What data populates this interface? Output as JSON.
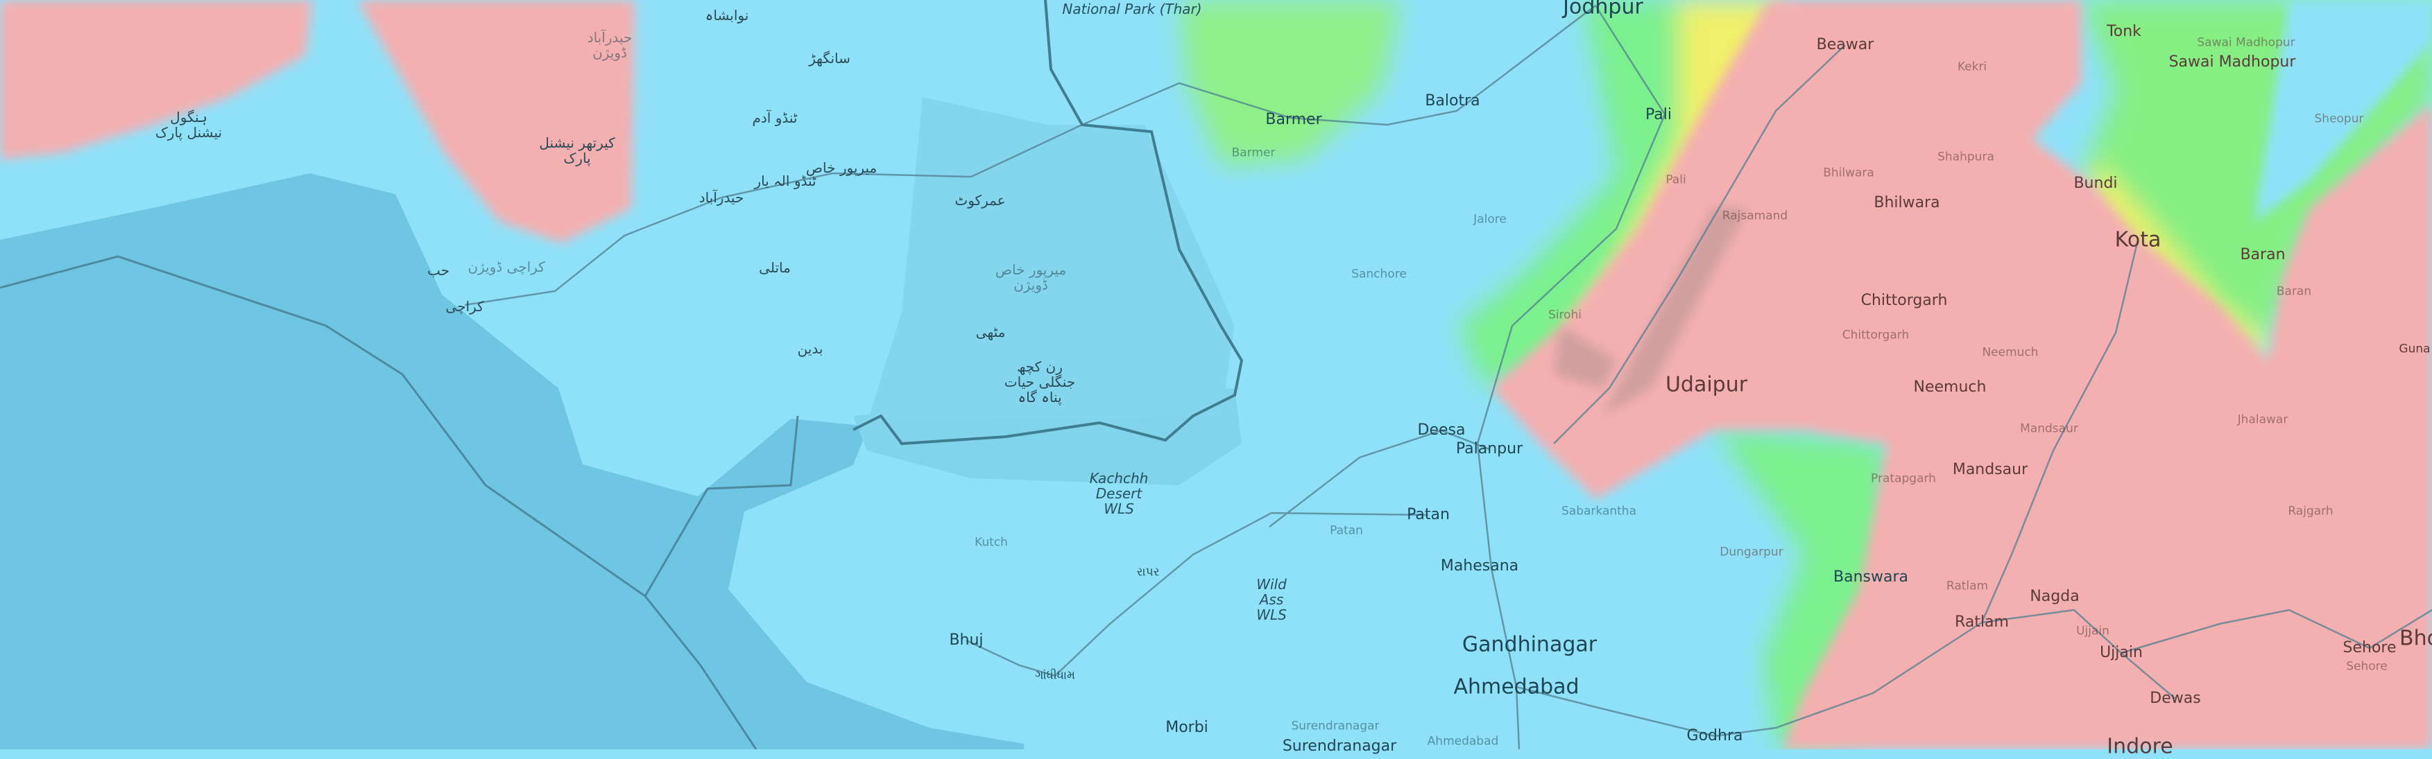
{
  "map": {
    "type": "topographic elevation map",
    "colors": {
      "lowland": "#8fe1f9",
      "sea": "#6fc6e2",
      "mid": "#7df08a",
      "upper": "#f2f26a",
      "high": "#f4b0b0",
      "peak": "#8a7a7a",
      "border": "#3f7d93",
      "road": "#4f7f8f"
    },
    "labels": {
      "national_park_thar": "National Park (Thar)",
      "jodhpur": "Jodhpur",
      "barmer": "Barmer",
      "barmer_district": "Barmer",
      "balotra": "Balotra",
      "pali": "Pali",
      "pali_district": "Pali",
      "jalore": "Jalore",
      "sanchore": "Sanchore",
      "sirohi": "Sirohi",
      "rajsamand": "Rajsamand",
      "beawar": "Beawar",
      "kekri": "Kekri",
      "tonk": "Tonk",
      "sawai_madhopur": "Sawai Madhopur",
      "sawai_madhopur_district": "Sawai Madhopur",
      "sheopur": "Sheopur",
      "shahpura": "Shahpura",
      "bhilwara_district": "Bhilwara",
      "bhilwara": "Bhilwara",
      "bundi": "Bundi",
      "kota": "Kota",
      "baran": "Baran",
      "baran_district": "Baran",
      "chittorgarh": "Chittorgarh",
      "chittorgarh_district": "Chittorgarh",
      "neemuch_district": "Neemuch",
      "guna": "Guna",
      "udaipur": "Udaipur",
      "deesa": "Deesa",
      "palanpur": "Palanpur",
      "patan": "Patan",
      "patan_district": "Patan",
      "mahesana": "Mahesana",
      "sabarkantha": "Sabarkantha",
      "dungarpur": "Dungarpur",
      "wild_ass_wls": "Wild Ass WLS",
      "gandhinagar": "Gandhinagar",
      "ahmedabad": "Ahmedabad",
      "ahmedabad_district": "Ahmedabad",
      "morbi": "Morbi",
      "surendranagar_district": "Surendranagar",
      "surendranagar": "Surendranagar",
      "godhra": "Godhra",
      "neemuch": "Neemuch",
      "mandsaur_district": "Mandsaur",
      "jhalawar": "Jhalawar",
      "mandsaur": "Mandsaur",
      "pratapgarh": "Pratapgarh",
      "rajgarh": "Rajgarh",
      "banswara": "Banswara",
      "ratlam_district": "Ratlam",
      "nagda": "Nagda",
      "ratlam": "Ratlam",
      "ujjain_district": "Ujjain",
      "ujjain": "Ujjain",
      "sehore": "Sehore",
      "sehore_district": "Sehore",
      "bhopal": "Bho",
      "dewas": "Dewas",
      "indore": "Indore",
      "kachchh_desert_wls": "Kachchh Desert WLS",
      "kutch": "Kutch",
      "rapar": "રાપર",
      "bhuj": "Bhuj",
      "gandhidham": "ગાંધીધામ",
      "nawabshah": "نوابشاہ",
      "sanghar": "سانگھڑ",
      "tando_adam": "ٹنڈو آدم",
      "mirpur_khas": "میرپور خاص",
      "tando_allahyar": "ٹنڈو الہ یار",
      "hyderabad": "حیدرآباد",
      "umerkot": "عمرکوٹ",
      "matli": "ماتلی",
      "badin": "بدین",
      "mithi": "مٹھی",
      "mirpur_khas_division": "میرپور خاص ڈویژن",
      "rann_kutch_sanctuary": "رن کچھ جنگلی حیات پناہ گاہ",
      "hingol_np": "ہنگول نیشنل پارک",
      "kirthar_np": "کیرتھر نیشنل پارک",
      "hyderabad_division": "حیدرآباد ڈویژن",
      "karachi_division": "کراچی ڈویژن",
      "hub": "حب",
      "karachi": "کراچی"
    }
  }
}
